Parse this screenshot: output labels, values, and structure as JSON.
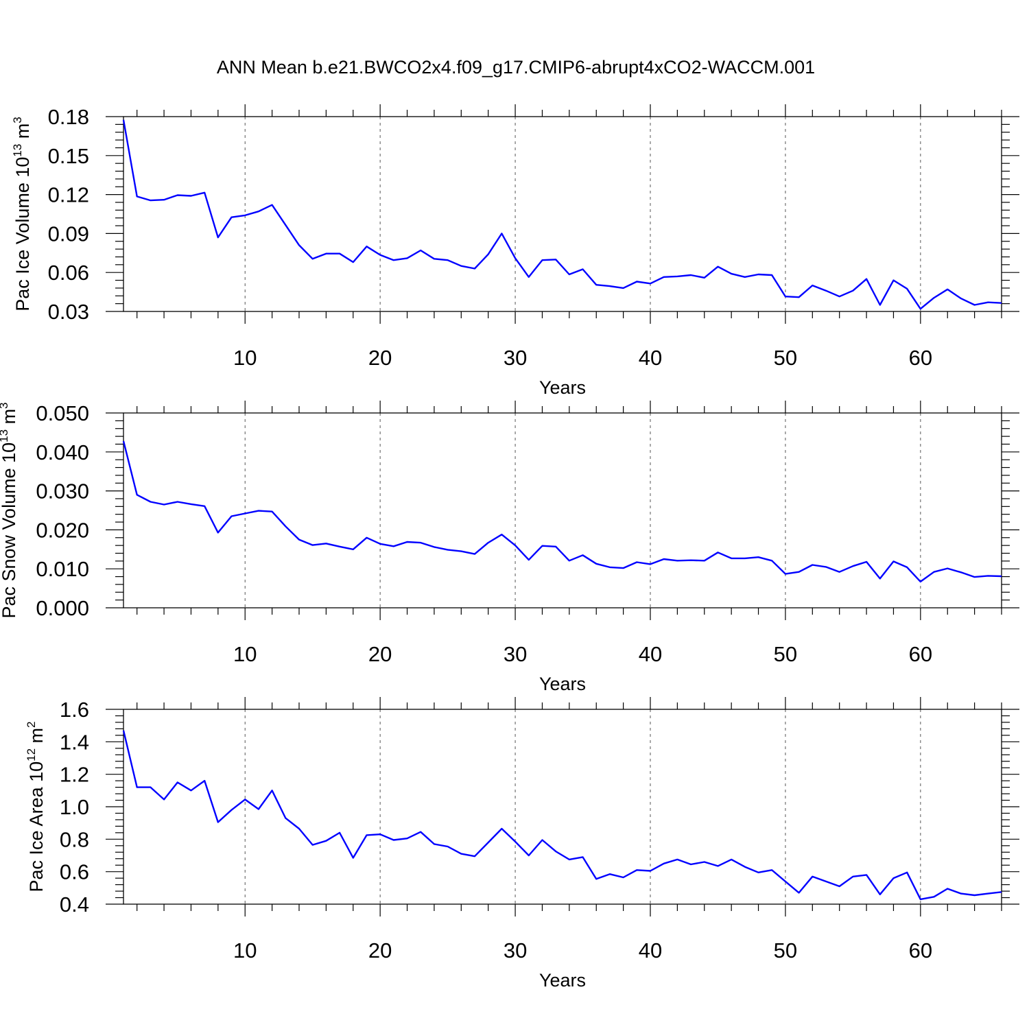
{
  "figure_title": "ANN Mean b.e21.BWCO2x4.f09_g17.CMIP6-abrupt4xCO2-WACCM.001",
  "line_color": "#0000ff",
  "chart_data": [
    {
      "type": "line",
      "xlabel": "Years",
      "ylabel": "Pac Ice Volume 10",
      "ylabel_exp": "13",
      "ylabel_unit": " m",
      "ylabel_unit_exp": "3",
      "xlim": [
        1,
        66
      ],
      "ylim": [
        0.03,
        0.18
      ],
      "xticks": [
        10,
        20,
        30,
        40,
        50,
        60
      ],
      "xticklabels": [
        "10",
        "20",
        "30",
        "40",
        "50",
        "60"
      ],
      "yticks": [
        0.03,
        0.06,
        0.09,
        0.12,
        0.15,
        0.18
      ],
      "yticklabels": [
        "0.03",
        "0.06",
        "0.09",
        "0.12",
        "0.15",
        "0.18"
      ],
      "grid": "vertical dashed at x ticks",
      "x": [
        1,
        2,
        3,
        4,
        5,
        6,
        7,
        8,
        9,
        10,
        11,
        12,
        13,
        14,
        15,
        16,
        17,
        18,
        19,
        20,
        21,
        22,
        23,
        24,
        25,
        26,
        27,
        28,
        29,
        30,
        31,
        32,
        33,
        34,
        35,
        36,
        37,
        38,
        39,
        40,
        41,
        42,
        43,
        44,
        45,
        46,
        47,
        48,
        49,
        50,
        51,
        52,
        53,
        54,
        55,
        56,
        57,
        58,
        59,
        60,
        61,
        62,
        63,
        64,
        65,
        66
      ],
      "y": [
        0.1775,
        0.1185,
        0.1155,
        0.116,
        0.1195,
        0.119,
        0.1215,
        0.087,
        0.1025,
        0.104,
        0.107,
        0.112,
        0.0965,
        0.081,
        0.0705,
        0.0745,
        0.0745,
        0.068,
        0.08,
        0.0735,
        0.0695,
        0.071,
        0.077,
        0.0705,
        0.0695,
        0.065,
        0.063,
        0.074,
        0.09,
        0.071,
        0.0565,
        0.0695,
        0.07,
        0.0585,
        0.0625,
        0.0505,
        0.0495,
        0.048,
        0.053,
        0.0515,
        0.0565,
        0.057,
        0.058,
        0.056,
        0.0645,
        0.059,
        0.0565,
        0.0585,
        0.058,
        0.0415,
        0.041,
        0.05,
        0.046,
        0.0415,
        0.046,
        0.055,
        0.035,
        0.054,
        0.0475,
        0.032,
        0.0405,
        0.047,
        0.04,
        0.035,
        0.037,
        0.0365
      ]
    },
    {
      "type": "line",
      "xlabel": "Years",
      "ylabel": "Pac Snow Volume 10",
      "ylabel_exp": "13",
      "ylabel_unit": " m",
      "ylabel_unit_exp": "3",
      "xlim": [
        1,
        66
      ],
      "ylim": [
        0.0,
        0.05
      ],
      "xticks": [
        10,
        20,
        30,
        40,
        50,
        60
      ],
      "xticklabels": [
        "10",
        "20",
        "30",
        "40",
        "50",
        "60"
      ],
      "yticks": [
        0.0,
        0.01,
        0.02,
        0.03,
        0.04,
        0.05
      ],
      "yticklabels": [
        "0.000",
        "0.010",
        "0.020",
        "0.030",
        "0.040",
        "0.050"
      ],
      "grid": "vertical dashed at x ticks",
      "x": [
        1,
        2,
        3,
        4,
        5,
        6,
        7,
        8,
        9,
        10,
        11,
        12,
        13,
        14,
        15,
        16,
        17,
        18,
        19,
        20,
        21,
        22,
        23,
        24,
        25,
        26,
        27,
        28,
        29,
        30,
        31,
        32,
        33,
        34,
        35,
        36,
        37,
        38,
        39,
        40,
        41,
        42,
        43,
        44,
        45,
        46,
        47,
        48,
        49,
        50,
        51,
        52,
        53,
        54,
        55,
        56,
        57,
        58,
        59,
        60,
        61,
        62,
        63,
        64,
        65,
        66
      ],
      "y": [
        0.0428,
        0.029,
        0.0272,
        0.0265,
        0.0272,
        0.0266,
        0.0261,
        0.0193,
        0.0235,
        0.0242,
        0.0249,
        0.0247,
        0.0209,
        0.0175,
        0.0161,
        0.0165,
        0.0157,
        0.015,
        0.018,
        0.0164,
        0.0158,
        0.0169,
        0.0167,
        0.0156,
        0.0149,
        0.0145,
        0.0138,
        0.0167,
        0.0188,
        0.016,
        0.0123,
        0.0159,
        0.0157,
        0.0121,
        0.0135,
        0.0113,
        0.0104,
        0.0102,
        0.0117,
        0.0112,
        0.0125,
        0.0121,
        0.0122,
        0.0121,
        0.0142,
        0.0127,
        0.0127,
        0.013,
        0.0121,
        0.0087,
        0.0092,
        0.011,
        0.0105,
        0.0092,
        0.0107,
        0.0118,
        0.0075,
        0.0119,
        0.0104,
        0.0067,
        0.0092,
        0.0101,
        0.0091,
        0.0079,
        0.0082,
        0.0081
      ]
    },
    {
      "type": "line",
      "xlabel": "Years",
      "ylabel": "Pac Ice Area 10",
      "ylabel_exp": "12",
      "ylabel_unit": " m",
      "ylabel_unit_exp": "2",
      "xlim": [
        1,
        66
      ],
      "ylim": [
        0.4,
        1.6
      ],
      "xticks": [
        10,
        20,
        30,
        40,
        50,
        60
      ],
      "xticklabels": [
        "10",
        "20",
        "30",
        "40",
        "50",
        "60"
      ],
      "yticks": [
        0.4,
        0.6,
        0.8,
        1.0,
        1.2,
        1.4,
        1.6
      ],
      "yticklabels": [
        "0.4",
        "0.6",
        "0.8",
        "1.0",
        "1.2",
        "1.4",
        "1.6"
      ],
      "grid": "vertical dashed at x ticks",
      "x": [
        1,
        2,
        3,
        4,
        5,
        6,
        7,
        8,
        9,
        10,
        11,
        12,
        13,
        14,
        15,
        16,
        17,
        18,
        19,
        20,
        21,
        22,
        23,
        24,
        25,
        26,
        27,
        28,
        29,
        30,
        31,
        32,
        33,
        34,
        35,
        36,
        37,
        38,
        39,
        40,
        41,
        42,
        43,
        44,
        45,
        46,
        47,
        48,
        49,
        50,
        51,
        52,
        53,
        54,
        55,
        56,
        57,
        58,
        59,
        60,
        61,
        62,
        63,
        64,
        65,
        66
      ],
      "y": [
        1.47,
        1.12,
        1.12,
        1.045,
        1.15,
        1.1,
        1.16,
        0.905,
        0.98,
        1.045,
        0.985,
        1.1,
        0.93,
        0.865,
        0.765,
        0.79,
        0.84,
        0.685,
        0.825,
        0.83,
        0.795,
        0.805,
        0.845,
        0.77,
        0.755,
        0.71,
        0.695,
        0.78,
        0.865,
        0.785,
        0.7,
        0.795,
        0.725,
        0.675,
        0.69,
        0.555,
        0.585,
        0.565,
        0.61,
        0.605,
        0.65,
        0.675,
        0.645,
        0.66,
        0.635,
        0.675,
        0.63,
        0.595,
        0.61,
        0.54,
        0.47,
        0.57,
        0.54,
        0.51,
        0.57,
        0.58,
        0.46,
        0.56,
        0.595,
        0.43,
        0.445,
        0.495,
        0.465,
        0.455,
        0.465,
        0.475
      ]
    }
  ]
}
